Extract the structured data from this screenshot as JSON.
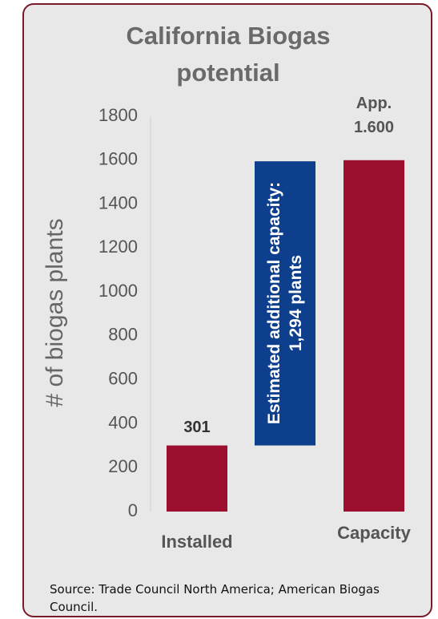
{
  "chart_data": {
    "type": "waterfall",
    "title": "California Biogas potential",
    "y_label": "# of biogas plants",
    "categories": [
      "Installed",
      null,
      "Capacity"
    ],
    "measures": [
      "absolute",
      "relative",
      "total"
    ],
    "values": [
      301,
      1294,
      1600
    ],
    "value_labels": [
      "301",
      "Estimated additional capacity: 1,294 plants",
      "App. 1.600"
    ],
    "colors": [
      "#9c0f2e",
      "#0e3f8c",
      "#9c0f2e"
    ],
    "ylim": [
      0,
      1800
    ],
    "yticks": [
      0,
      200,
      400,
      600,
      800,
      1000,
      1200,
      1400,
      1600,
      1800
    ],
    "source": "Source: Trade Council North America; American Biogas Council."
  }
}
